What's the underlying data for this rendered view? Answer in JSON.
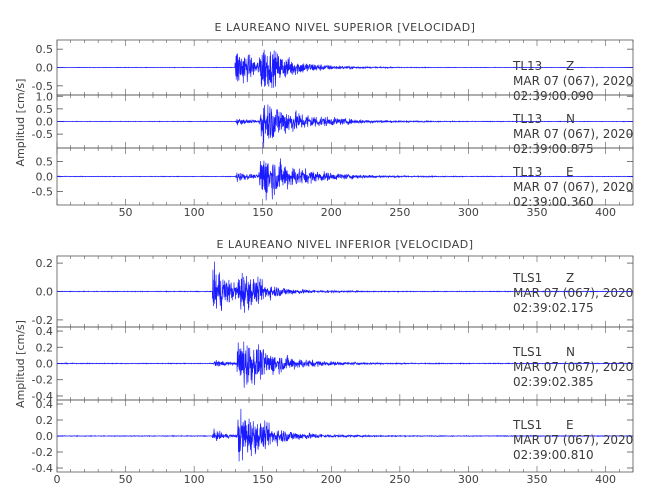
{
  "chart_data": [
    {
      "type": "line",
      "title": "E LAUREANO NIVEL SUPERIOR [VELOCIDAD]",
      "ylabel": "Amplitud [cm/s]",
      "xlim": [
        0,
        420
      ],
      "x_ticks": [
        50,
        100,
        150,
        200,
        250,
        300,
        350,
        400
      ],
      "x_tick_labels": [
        "50",
        "100",
        "150",
        "200",
        "250",
        "300",
        "350",
        "400"
      ],
      "color": "#1a1aff",
      "traces": [
        {
          "station": "TL13",
          "component": "Z",
          "date": "MAR 07 (067), 2020",
          "start_time": "02:39:00.090",
          "ylim": [
            -0.75,
            0.75
          ],
          "y_ticks": [
            0.5,
            0.0,
            -0.5
          ],
          "y_tick_labels": [
            "0.5",
            "0.0",
            "-0.5"
          ],
          "events": [
            {
              "t": 129.5,
              "peak": 0.62,
              "decay": 15
            },
            {
              "t": 147.5,
              "peak": 0.55,
              "decay": 22
            }
          ],
          "noise": 0.005
        },
        {
          "station": "TL13",
          "component": "N",
          "date": "MAR 07 (067), 2020",
          "start_time": "02:39:00.875",
          "ylim": [
            -1.05,
            1.05
          ],
          "y_ticks": [
            1.0,
            0.5,
            0.0,
            -0.5
          ],
          "y_tick_labels": [
            "1.0",
            "0.5",
            "0.0",
            "-0.5"
          ],
          "events": [
            {
              "t": 130,
              "peak": 0.15,
              "decay": 10
            },
            {
              "t": 147.5,
              "peak": 0.95,
              "decay": 28
            }
          ],
          "noise": 0.008
        },
        {
          "station": "TL13",
          "component": "E",
          "date": "MAR 07 (067), 2020",
          "start_time": "02:39:00.360",
          "ylim": [
            -0.95,
            0.95
          ],
          "y_ticks": [
            0.5,
            0.0,
            -0.5
          ],
          "y_tick_labels": [
            "0.5",
            "0.0",
            "-0.5"
          ],
          "events": [
            {
              "t": 130,
              "peak": 0.2,
              "decay": 10
            },
            {
              "t": 147,
              "peak": 0.85,
              "decay": 26
            }
          ],
          "noise": 0.008
        }
      ]
    },
    {
      "type": "line",
      "title": "E LAUREANO NIVEL INFERIOR [VELOCIDAD]",
      "ylabel": "Amplitud [cm/s]",
      "xlim": [
        0,
        420
      ],
      "x_ticks": [
        0,
        50,
        100,
        150,
        200,
        250,
        300,
        350,
        400
      ],
      "x_tick_labels": [
        "0",
        "50",
        "100",
        "150",
        "200",
        "250",
        "300",
        "350",
        "400"
      ],
      "color": "#1a1aff",
      "traces": [
        {
          "station": "TLS1",
          "component": "Z",
          "date": "MAR 07 (067), 2020",
          "start_time": "02:39:02.175",
          "ylim": [
            -0.25,
            0.25
          ],
          "y_ticks": [
            0.2,
            0.0,
            -0.2
          ],
          "y_tick_labels": [
            "0.2",
            "0.0",
            "-0.2"
          ],
          "events": [
            {
              "t": 113,
              "peak": 0.22,
              "decay": 12
            },
            {
              "t": 131.5,
              "peak": 0.13,
              "decay": 20
            }
          ],
          "noise": 0.002
        },
        {
          "station": "TLS1",
          "component": "N",
          "date": "MAR 07 (067), 2020",
          "start_time": "02:39:02.385",
          "ylim": [
            -0.45,
            0.45
          ],
          "y_ticks": [
            0.4,
            0.2,
            0.0,
            -0.2,
            -0.4
          ],
          "y_tick_labels": [
            "0.4",
            "0.2",
            "0.0",
            "-0.2",
            "-0.4"
          ],
          "events": [
            {
              "t": 114,
              "peak": 0.05,
              "decay": 10
            },
            {
              "t": 131,
              "peak": 0.37,
              "decay": 24
            }
          ],
          "noise": 0.004
        },
        {
          "station": "TLS1",
          "component": "E",
          "date": "MAR 07 (067), 2020",
          "start_time": "02:39:00.810",
          "ylim": [
            -0.45,
            0.45
          ],
          "y_ticks": [
            0.4,
            0.2,
            0.0,
            -0.2,
            -0.4
          ],
          "y_tick_labels": [
            "0.4",
            "0.2",
            "0.0",
            "-0.2",
            "-0.4"
          ],
          "events": [
            {
              "t": 113,
              "peak": 0.07,
              "decay": 10
            },
            {
              "t": 131,
              "peak": 0.35,
              "decay": 22
            }
          ],
          "noise": 0.004
        }
      ]
    }
  ]
}
